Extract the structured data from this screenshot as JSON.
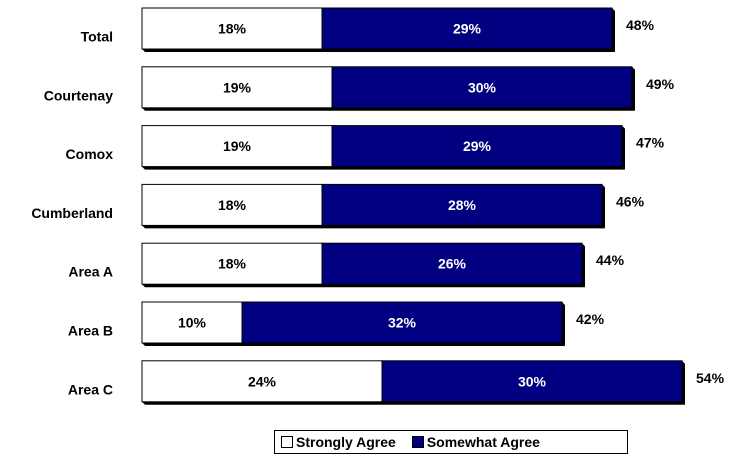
{
  "chart_data": {
    "type": "bar",
    "orientation": "horizontal",
    "stacked": true,
    "categories": [
      "Total",
      "Courtenay",
      "Comox",
      "Cumberland",
      "Area A",
      "Area B",
      "Area C"
    ],
    "series": [
      {
        "name": "Strongly Agree",
        "color": "#ffffff",
        "text_color": "#000000",
        "values": [
          18,
          19,
          19,
          18,
          18,
          10,
          24
        ],
        "labels": [
          "18%",
          "19%",
          "19%",
          "18%",
          "18%",
          "10%",
          "24%"
        ]
      },
      {
        "name": "Somewhat Agree",
        "color": "#000080",
        "text_color": "#ffffff",
        "values": [
          29,
          30,
          29,
          28,
          26,
          32,
          30
        ],
        "labels": [
          "29%",
          "30%",
          "29%",
          "28%",
          "26%",
          "32%",
          "30%"
        ]
      }
    ],
    "totals": [
      48,
      49,
      47,
      46,
      44,
      42,
      54
    ],
    "total_labels": [
      "48%",
      "49%",
      "47%",
      "46%",
      "44%",
      "42%",
      "54%"
    ],
    "title": "",
    "xlabel": "",
    "ylabel": "",
    "xlim": [
      0,
      54
    ],
    "grid": false,
    "legend_position": "bottom"
  }
}
